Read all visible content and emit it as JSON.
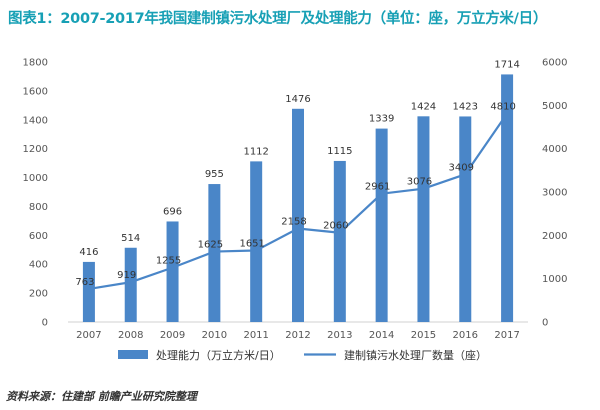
{
  "title": "图表1：2007-2017年我国建制镇污水处理厂及处理能力（单位：座，万立方米/日）",
  "source": "资料来源：住建部 前瞻产业研究院整理",
  "chart_data": {
    "type": "bar",
    "categories": [
      "2007",
      "2008",
      "2009",
      "2010",
      "2011",
      "2012",
      "2013",
      "2014",
      "2015",
      "2016",
      "2017"
    ],
    "series": [
      {
        "name": "处理能力（万立方米/日）",
        "chart": "bar",
        "axis": "left",
        "values": [
          416,
          514,
          696,
          955,
          1112,
          1476,
          1115,
          1339,
          1424,
          1423,
          1714
        ],
        "color": "#4a86c8"
      },
      {
        "name": "建制镇污水处理厂数量（座）",
        "chart": "line",
        "axis": "right",
        "values": [
          763,
          919,
          1255,
          1625,
          1651,
          2158,
          2060,
          2961,
          3076,
          3409,
          4810
        ],
        "color": "#4a86c8"
      }
    ],
    "y_left": {
      "min": 0,
      "max": 1800,
      "ticks": [
        0,
        200,
        400,
        600,
        800,
        1000,
        1200,
        1400,
        1600,
        1800
      ]
    },
    "y_right": {
      "min": 0,
      "max": 6000,
      "ticks": [
        0,
        1000,
        2000,
        3000,
        4000,
        5000,
        6000
      ]
    },
    "legend_position": "bottom",
    "grid": false
  }
}
